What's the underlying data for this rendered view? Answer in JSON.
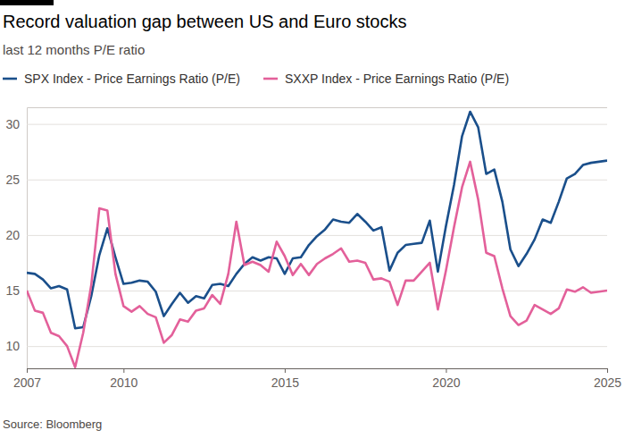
{
  "chart_data": {
    "type": "line",
    "title": "Record valuation gap between US and Euro stocks",
    "subtitle": "last 12 months P/E ratio",
    "source": "Source: Bloomberg",
    "x": [
      2007,
      2007.25,
      2007.5,
      2007.75,
      2008,
      2008.25,
      2008.5,
      2008.75,
      2009,
      2009.25,
      2009.5,
      2009.75,
      2010,
      2010.25,
      2010.5,
      2010.75,
      2011,
      2011.25,
      2011.5,
      2011.75,
      2012,
      2012.25,
      2012.5,
      2012.75,
      2013,
      2013.25,
      2013.5,
      2013.75,
      2014,
      2014.25,
      2014.5,
      2014.75,
      2015,
      2015.25,
      2015.5,
      2015.75,
      2016,
      2016.25,
      2016.5,
      2016.75,
      2017,
      2017.25,
      2017.5,
      2017.75,
      2018,
      2018.25,
      2018.5,
      2018.75,
      2019,
      2019.25,
      2019.5,
      2019.75,
      2020,
      2020.25,
      2020.5,
      2020.75,
      2021,
      2021.25,
      2021.5,
      2021.75,
      2022,
      2022.25,
      2022.5,
      2022.75,
      2023,
      2023.25,
      2023.5,
      2023.75,
      2024,
      2024.25,
      2024.5,
      2024.75,
      2025
    ],
    "series": [
      {
        "name": "SPX Index - Price Earnings Ratio (P/E)",
        "color": "#1a4f8b",
        "values": [
          16.6,
          16.5,
          16.0,
          15.2,
          15.4,
          15.1,
          11.6,
          11.7,
          14.5,
          18.2,
          20.6,
          18.0,
          15.6,
          15.7,
          15.9,
          15.8,
          14.9,
          12.7,
          13.8,
          14.8,
          13.9,
          14.5,
          14.3,
          15.5,
          15.6,
          15.4,
          16.5,
          17.4,
          18.0,
          17.7,
          18.0,
          17.9,
          16.5,
          17.9,
          18.0,
          19.1,
          19.9,
          20.5,
          21.4,
          21.2,
          21.1,
          21.9,
          21.2,
          20.4,
          20.7,
          16.8,
          18.4,
          19.1,
          19.2,
          19.3,
          21.3,
          16.7,
          20.8,
          24.5,
          28.9,
          31.1,
          29.7,
          25.5,
          25.9,
          23.0,
          18.7,
          17.2,
          18.3,
          19.6,
          21.4,
          21.1,
          23.0,
          25.1,
          25.5,
          26.3,
          26.5,
          26.6,
          26.7
        ]
      },
      {
        "name": "SXXP Index - Price Earnings Ratio (P/E)",
        "color": "#e3609a",
        "values": [
          15.0,
          13.2,
          13.0,
          11.2,
          10.9,
          10.0,
          8.1,
          11.2,
          15.5,
          22.4,
          22.2,
          16.5,
          13.6,
          13.1,
          13.6,
          12.9,
          12.6,
          10.3,
          11.0,
          12.4,
          12.2,
          13.2,
          13.4,
          14.6,
          13.8,
          16.5,
          21.2,
          17.3,
          17.6,
          17.3,
          16.7,
          19.4,
          18.1,
          16.4,
          17.4,
          16.4,
          17.4,
          17.9,
          18.3,
          18.8,
          17.6,
          17.7,
          17.5,
          16.0,
          16.1,
          15.8,
          13.7,
          15.9,
          15.9,
          16.7,
          17.5,
          13.3,
          16.8,
          20.7,
          24.3,
          26.6,
          23.2,
          18.4,
          18.1,
          15.2,
          12.7,
          11.9,
          12.3,
          13.7,
          13.3,
          12.9,
          13.4,
          15.1,
          14.9,
          15.3,
          14.8,
          14.9,
          15.0
        ]
      }
    ],
    "xlim": [
      2007,
      2025
    ],
    "xticks": [
      2007,
      2010,
      2015,
      2020,
      2025
    ],
    "ylim": [
      8,
      31.5
    ],
    "yticks": [
      10,
      15,
      20,
      25,
      30
    ],
    "grid": true,
    "legend": "top"
  }
}
